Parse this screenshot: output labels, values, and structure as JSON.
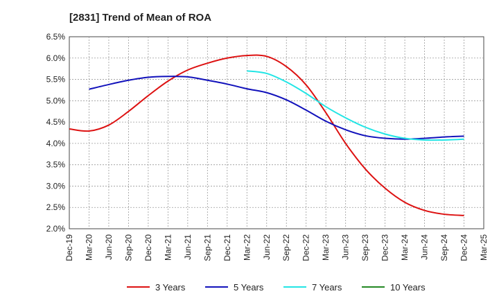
{
  "chart_data": {
    "type": "line",
    "title": "[2831]  Trend of Mean of ROA",
    "xlabel": "",
    "ylabel": "",
    "ylim": [
      2.0,
      6.5
    ],
    "y_ticks": [
      2.0,
      2.5,
      3.0,
      3.5,
      4.0,
      4.5,
      5.0,
      5.5,
      6.0,
      6.5
    ],
    "y_tick_labels": [
      "2.0%",
      "2.5%",
      "3.0%",
      "3.5%",
      "4.0%",
      "4.5%",
      "5.0%",
      "5.5%",
      "6.0%",
      "6.5%"
    ],
    "x_tick_labels": [
      "Dec-19",
      "Mar-20",
      "Jun-20",
      "Sep-20",
      "Dec-20",
      "Mar-21",
      "Jun-21",
      "Sep-21",
      "Dec-21",
      "Mar-22",
      "Jun-22",
      "Sep-22",
      "Dec-22",
      "Mar-23",
      "Jun-23",
      "Sep-23",
      "Dec-23",
      "Mar-24",
      "Jun-24",
      "Sep-24",
      "Dec-24",
      "Mar-25"
    ],
    "grid": true,
    "legend_position": "bottom",
    "series": [
      {
        "name": "3 Years",
        "color": "#dd1111",
        "values": [
          4.34,
          4.29,
          4.43,
          4.75,
          5.12,
          5.46,
          5.72,
          5.88,
          6.0,
          6.06,
          6.04,
          5.8,
          5.37,
          4.72,
          4.0,
          3.4,
          2.95,
          2.62,
          2.43,
          2.34,
          2.31,
          null
        ]
      },
      {
        "name": "5 Years",
        "color": "#1111bb",
        "values": [
          null,
          5.27,
          5.38,
          5.48,
          5.55,
          5.57,
          5.56,
          5.48,
          5.39,
          5.28,
          5.19,
          5.02,
          4.78,
          4.52,
          4.32,
          4.18,
          4.12,
          4.1,
          4.12,
          4.15,
          4.17,
          null
        ]
      },
      {
        "name": "7 Years",
        "color": "#22e5e5",
        "values": [
          null,
          null,
          null,
          null,
          null,
          null,
          null,
          null,
          null,
          5.7,
          5.64,
          5.44,
          5.17,
          4.86,
          4.6,
          4.38,
          4.22,
          4.12,
          4.08,
          4.08,
          4.1,
          null
        ]
      },
      {
        "name": "10 Years",
        "color": "#228822",
        "values": [
          null,
          null,
          null,
          null,
          null,
          null,
          null,
          null,
          null,
          null,
          null,
          null,
          null,
          null,
          null,
          null,
          null,
          null,
          null,
          null,
          null,
          null
        ]
      }
    ]
  }
}
